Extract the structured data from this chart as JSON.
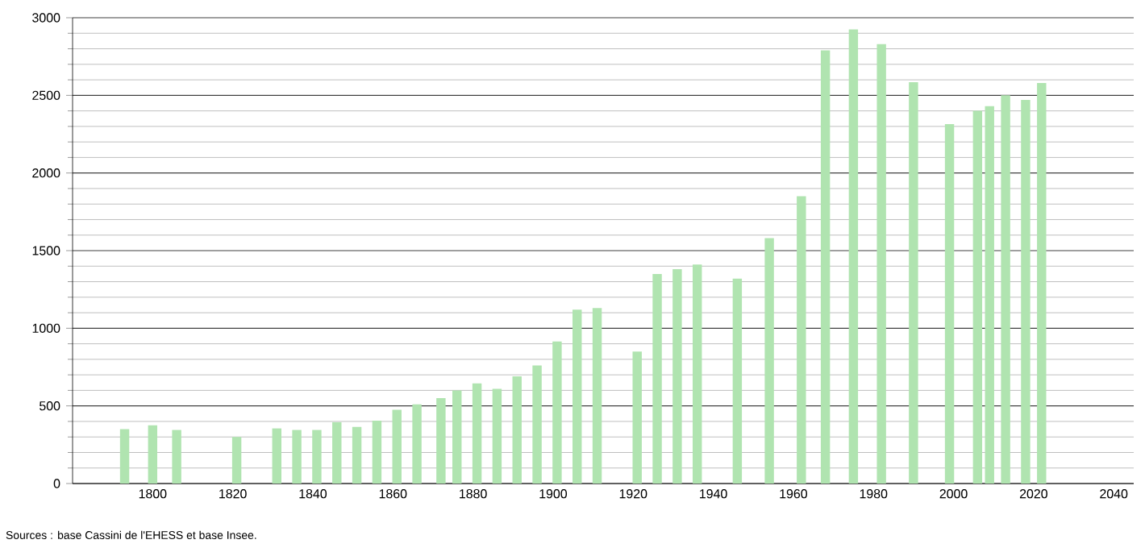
{
  "chart_data": {
    "type": "bar",
    "color": "#b0e4b0",
    "x": [
      1793,
      1800,
      1806,
      1821,
      1831,
      1836,
      1841,
      1846,
      1851,
      1856,
      1861,
      1866,
      1872,
      1876,
      1881,
      1886,
      1891,
      1896,
      1901,
      1906,
      1911,
      1921,
      1926,
      1931,
      1936,
      1946,
      1954,
      1962,
      1968,
      1975,
      1982,
      1990,
      1999,
      2006,
      2009,
      2013,
      2018,
      2022
    ],
    "values": [
      350,
      375,
      345,
      300,
      355,
      345,
      345,
      395,
      365,
      405,
      475,
      510,
      550,
      600,
      645,
      610,
      690,
      760,
      915,
      1120,
      1130,
      850,
      1350,
      1380,
      1410,
      1320,
      1580,
      1850,
      2790,
      2925,
      2830,
      2585,
      2315,
      2400,
      2430,
      2500,
      2470,
      2580
    ],
    "xlim": [
      1780,
      2045
    ],
    "xticks": [
      1800,
      1820,
      1840,
      1860,
      1880,
      1900,
      1920,
      1940,
      1960,
      1980,
      2000,
      2020,
      2040
    ],
    "ylim": [
      0,
      3000
    ],
    "yticks": [
      0,
      500,
      1000,
      1500,
      2000,
      2500,
      3000
    ],
    "grid": "y",
    "annotations": [
      "Sources : base Cassini de l'EHESS et base Insee."
    ]
  }
}
